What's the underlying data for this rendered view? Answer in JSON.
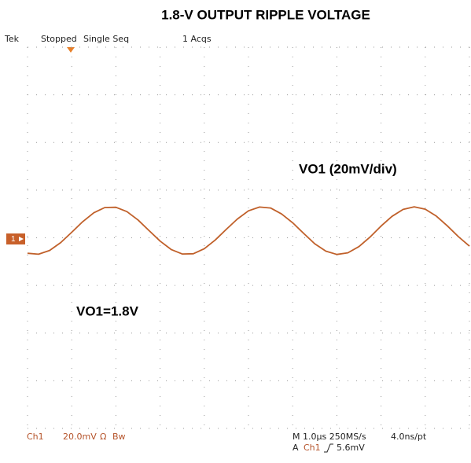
{
  "chart_data": {
    "type": "line",
    "title": "1.8-V OUTPUT RIPPLE VOLTAGE",
    "status": {
      "scope": "Tek",
      "state": "Stopped",
      "mode": "Single Seq",
      "acqs": "1 Acqs"
    },
    "annotations": [
      "VO1 (20mV/div)",
      "VO1=1.8V"
    ],
    "channel_marker": "1",
    "footer": {
      "channel": "Ch1",
      "scale": "20.0mV",
      "coupling": "Ω",
      "bandwidth": "Bw",
      "timebase": "M 1.0µs 250MS/s",
      "resolution": "4.0ns/pt",
      "trigger_source": "A",
      "trigger_channel": "Ch1",
      "trigger_level": "5.6mV"
    },
    "x": [
      0,
      0.25,
      0.5,
      0.75,
      1,
      1.25,
      1.5,
      1.75,
      2,
      2.25,
      2.5,
      2.75,
      3,
      3.25,
      3.5,
      3.75,
      4,
      4.25,
      4.5,
      4.75,
      5,
      5.25,
      5.5,
      5.75,
      6,
      6.25,
      6.5,
      6.75,
      7,
      7.25,
      7.5,
      7.75,
      8,
      8.25,
      8.5,
      8.75,
      9,
      9.25,
      9.5,
      9.75,
      10
    ],
    "series": [
      {
        "name": "VO1",
        "color": "#c0602a",
        "values": [
          -6.5,
          -6.9,
          -5.3,
          -2.0,
          2.3,
          6.8,
          10.5,
          12.7,
          12.8,
          11.0,
          7.5,
          3.0,
          -1.4,
          -4.9,
          -6.8,
          -6.7,
          -4.6,
          -0.9,
          3.6,
          7.9,
          11.3,
          12.9,
          12.5,
          10.0,
          6.3,
          1.8,
          -2.5,
          -5.6,
          -7.0,
          -6.3,
          -3.7,
          0.3,
          4.9,
          9.0,
          11.9,
          13.0,
          12.0,
          9.1,
          5.0,
          0.5,
          -3.5
        ]
      }
    ],
    "xlim": [
      0,
      10
    ],
    "xticks": [
      0,
      1,
      2,
      3,
      4,
      5,
      6,
      7,
      8,
      9,
      10
    ],
    "ylim": [
      -80,
      80
    ],
    "yticks": [
      -80,
      -60,
      -40,
      -20,
      0,
      20,
      40,
      60,
      80
    ],
    "grid": true
  }
}
